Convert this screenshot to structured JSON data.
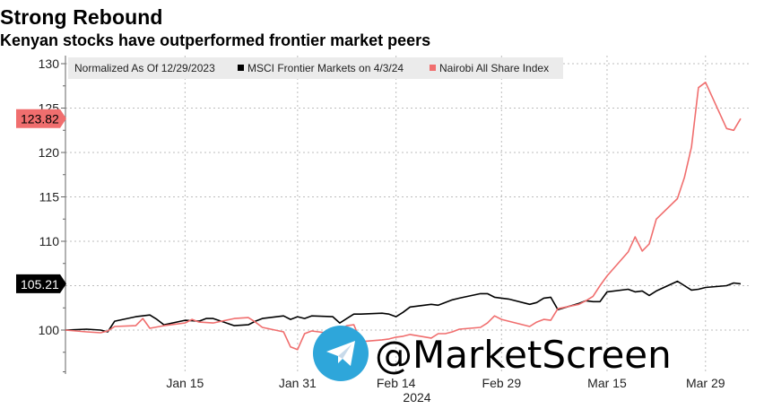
{
  "chart_data": {
    "type": "line",
    "title": "Strong Rebound",
    "subtitle": "Kenyan stocks have outperformed frontier market peers",
    "legend": {
      "note": "Normalized As Of 12/29/2023",
      "placement": "top-left"
    },
    "xlabel": "2024",
    "x_ticks": [
      "Jan 15",
      "Jan 31",
      "Feb 14",
      "Feb 29",
      "Mar 15",
      "Mar 29"
    ],
    "y_ticks": [
      130,
      125,
      120,
      115,
      110,
      105,
      100
    ],
    "ylim": [
      95,
      130
    ],
    "xlim": [
      "2023-12-29",
      "2024-04-03"
    ],
    "grid": true,
    "series": [
      {
        "name": "MSCI Frontier Markets on 4/3/24",
        "color": "#000000",
        "last_value_label": "105.21",
        "points": [
          [
            "2023-12-29",
            100.0
          ],
          [
            "2024-01-01",
            100.1
          ],
          [
            "2024-01-03",
            100.0
          ],
          [
            "2024-01-04",
            99.8
          ],
          [
            "2024-01-05",
            101.0
          ],
          [
            "2024-01-08",
            101.5
          ],
          [
            "2024-01-10",
            101.7
          ],
          [
            "2024-01-11",
            101.2
          ],
          [
            "2024-01-12",
            100.6
          ],
          [
            "2024-01-15",
            101.1
          ],
          [
            "2024-01-17",
            101.0
          ],
          [
            "2024-01-18",
            101.3
          ],
          [
            "2024-01-19",
            101.3
          ],
          [
            "2024-01-22",
            100.5
          ],
          [
            "2024-01-24",
            100.6
          ],
          [
            "2024-01-25",
            101.0
          ],
          [
            "2024-01-26",
            101.3
          ],
          [
            "2024-01-29",
            101.6
          ],
          [
            "2024-01-30",
            101.2
          ],
          [
            "2024-01-31",
            101.5
          ],
          [
            "2024-02-01",
            101.3
          ],
          [
            "2024-02-02",
            101.6
          ],
          [
            "2024-02-05",
            101.5
          ],
          [
            "2024-02-06",
            100.8
          ],
          [
            "2024-02-07",
            101.3
          ],
          [
            "2024-02-08",
            101.8
          ],
          [
            "2024-02-09",
            101.8
          ],
          [
            "2024-02-12",
            101.9
          ],
          [
            "2024-02-13",
            101.8
          ],
          [
            "2024-02-14",
            101.5
          ],
          [
            "2024-02-15",
            102.0
          ],
          [
            "2024-02-16",
            102.6
          ],
          [
            "2024-02-19",
            102.9
          ],
          [
            "2024-02-20",
            102.8
          ],
          [
            "2024-02-21",
            103.1
          ],
          [
            "2024-02-22",
            103.4
          ],
          [
            "2024-02-23",
            103.6
          ],
          [
            "2024-02-26",
            104.1
          ],
          [
            "2024-02-27",
            104.1
          ],
          [
            "2024-02-28",
            103.7
          ],
          [
            "2024-02-29",
            103.6
          ],
          [
            "2024-03-01",
            103.5
          ],
          [
            "2024-03-04",
            102.9
          ],
          [
            "2024-03-05",
            103.1
          ],
          [
            "2024-03-06",
            103.6
          ],
          [
            "2024-03-07",
            103.7
          ],
          [
            "2024-03-08",
            102.3
          ],
          [
            "2024-03-11",
            103.0
          ],
          [
            "2024-03-12",
            103.3
          ],
          [
            "2024-03-13",
            103.2
          ],
          [
            "2024-03-14",
            103.2
          ],
          [
            "2024-03-15",
            104.3
          ],
          [
            "2024-03-18",
            104.6
          ],
          [
            "2024-03-19",
            104.3
          ],
          [
            "2024-03-20",
            104.4
          ],
          [
            "2024-03-21",
            103.9
          ],
          [
            "2024-03-22",
            104.4
          ],
          [
            "2024-03-25",
            105.5
          ],
          [
            "2024-03-26",
            105.0
          ],
          [
            "2024-03-27",
            104.5
          ],
          [
            "2024-03-28",
            104.6
          ],
          [
            "2024-03-29",
            104.8
          ],
          [
            "2024-04-01",
            105.0
          ],
          [
            "2024-04-02",
            105.3
          ],
          [
            "2024-04-03",
            105.21
          ]
        ]
      },
      {
        "name": "Nairobi All Share Index",
        "color": "#f06e6e",
        "last_value_label": "123.82",
        "points": [
          [
            "2023-12-29",
            100.0
          ],
          [
            "2024-01-01",
            99.8
          ],
          [
            "2024-01-03",
            99.7
          ],
          [
            "2024-01-04",
            99.9
          ],
          [
            "2024-01-05",
            100.4
          ],
          [
            "2024-01-08",
            100.5
          ],
          [
            "2024-01-09",
            101.3
          ],
          [
            "2024-01-10",
            100.2
          ],
          [
            "2024-01-12",
            100.5
          ],
          [
            "2024-01-15",
            100.8
          ],
          [
            "2024-01-16",
            101.2
          ],
          [
            "2024-01-17",
            100.9
          ],
          [
            "2024-01-19",
            100.8
          ],
          [
            "2024-01-22",
            101.3
          ],
          [
            "2024-01-24",
            101.4
          ],
          [
            "2024-01-25",
            100.9
          ],
          [
            "2024-01-26",
            100.3
          ],
          [
            "2024-01-29",
            99.8
          ],
          [
            "2024-01-30",
            98.1
          ],
          [
            "2024-01-31",
            97.8
          ],
          [
            "2024-02-01",
            99.6
          ],
          [
            "2024-02-02",
            99.9
          ],
          [
            "2024-02-05",
            99.6
          ],
          [
            "2024-02-06",
            100.1
          ],
          [
            "2024-02-07",
            100.5
          ],
          [
            "2024-02-08",
            100.6
          ],
          [
            "2024-02-09",
            98.7
          ],
          [
            "2024-02-12",
            98.9
          ],
          [
            "2024-02-13",
            99.0
          ],
          [
            "2024-02-14",
            99.2
          ],
          [
            "2024-02-15",
            99.3
          ],
          [
            "2024-02-16",
            99.5
          ],
          [
            "2024-02-19",
            99.1
          ],
          [
            "2024-02-20",
            99.6
          ],
          [
            "2024-02-21",
            99.6
          ],
          [
            "2024-02-22",
            99.8
          ],
          [
            "2024-02-23",
            100.1
          ],
          [
            "2024-02-26",
            100.3
          ],
          [
            "2024-02-27",
            100.8
          ],
          [
            "2024-02-28",
            101.6
          ],
          [
            "2024-02-29",
            101.2
          ],
          [
            "2024-03-01",
            101.0
          ],
          [
            "2024-03-04",
            100.4
          ],
          [
            "2024-03-05",
            100.9
          ],
          [
            "2024-03-06",
            101.2
          ],
          [
            "2024-03-07",
            101.1
          ],
          [
            "2024-03-08",
            102.4
          ],
          [
            "2024-03-11",
            102.9
          ],
          [
            "2024-03-12",
            103.3
          ],
          [
            "2024-03-13",
            103.8
          ],
          [
            "2024-03-14",
            105.0
          ],
          [
            "2024-03-15",
            106.1
          ],
          [
            "2024-03-18",
            108.8
          ],
          [
            "2024-03-19",
            110.5
          ],
          [
            "2024-03-20",
            108.9
          ],
          [
            "2024-03-21",
            109.7
          ],
          [
            "2024-03-22",
            112.5
          ],
          [
            "2024-03-25",
            114.8
          ],
          [
            "2024-03-26",
            117.2
          ],
          [
            "2024-03-27",
            120.6
          ],
          [
            "2024-03-28",
            127.3
          ],
          [
            "2024-03-29",
            127.9
          ],
          [
            "2024-04-01",
            122.7
          ],
          [
            "2024-04-02",
            122.5
          ],
          [
            "2024-04-03",
            123.82
          ]
        ]
      }
    ]
  },
  "watermark": {
    "text": "@MarketScreen",
    "icon": "telegram-icon",
    "icon_color": "#2ea6da"
  }
}
